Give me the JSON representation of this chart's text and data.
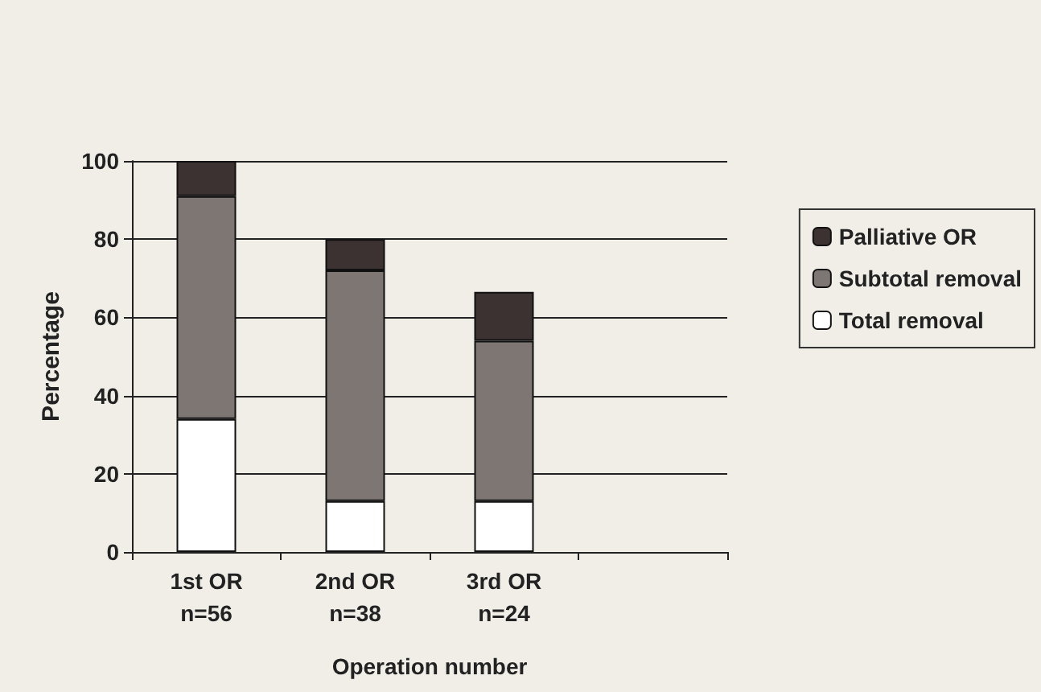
{
  "chart_data": {
    "type": "bar",
    "xlabel": "Operation number",
    "ylabel": "Percentage",
    "categories": [
      "1st OR\nn=56",
      "2nd OR\nn=38",
      "3rd OR\nn=24",
      null
    ],
    "stacked": true,
    "series": [
      {
        "name": "Total removal",
        "color": "#ffffff",
        "values": [
          34,
          13,
          13,
          null
        ]
      },
      {
        "name": "Subtotal removal",
        "color": "#7d7672",
        "values": [
          57,
          59,
          41,
          null
        ]
      },
      {
        "name": "Palliative OR",
        "color": "#3b3231",
        "values": [
          9,
          8,
          12.5,
          null
        ]
      }
    ],
    "ylim": [
      0,
      100
    ],
    "yticks": [
      0,
      20,
      40,
      60,
      80,
      100
    ],
    "grid": "y",
    "legend": "right"
  }
}
